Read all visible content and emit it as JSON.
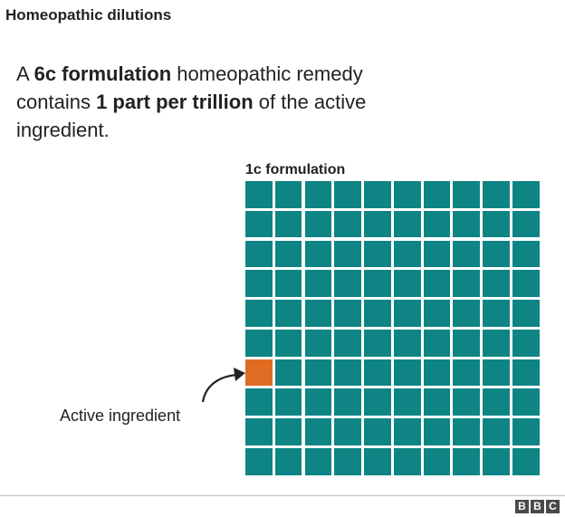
{
  "title": "Homeopathic dilutions",
  "intro": {
    "t1": "A ",
    "b1": "6c formulation",
    "t2": " homeopathic remedy contains ",
    "b2": "1 part per trillion",
    "t3": " of the active ingredient."
  },
  "grid": {
    "title": "1c formulation",
    "rows": 10,
    "columns": 10,
    "active_row": 7,
    "active_column": 1,
    "cell_color": "#0e8584",
    "active_color": "#e06c24"
  },
  "callout": {
    "label": "Active ingredient"
  },
  "logo": {
    "letters": [
      "B",
      "B",
      "C"
    ]
  }
}
